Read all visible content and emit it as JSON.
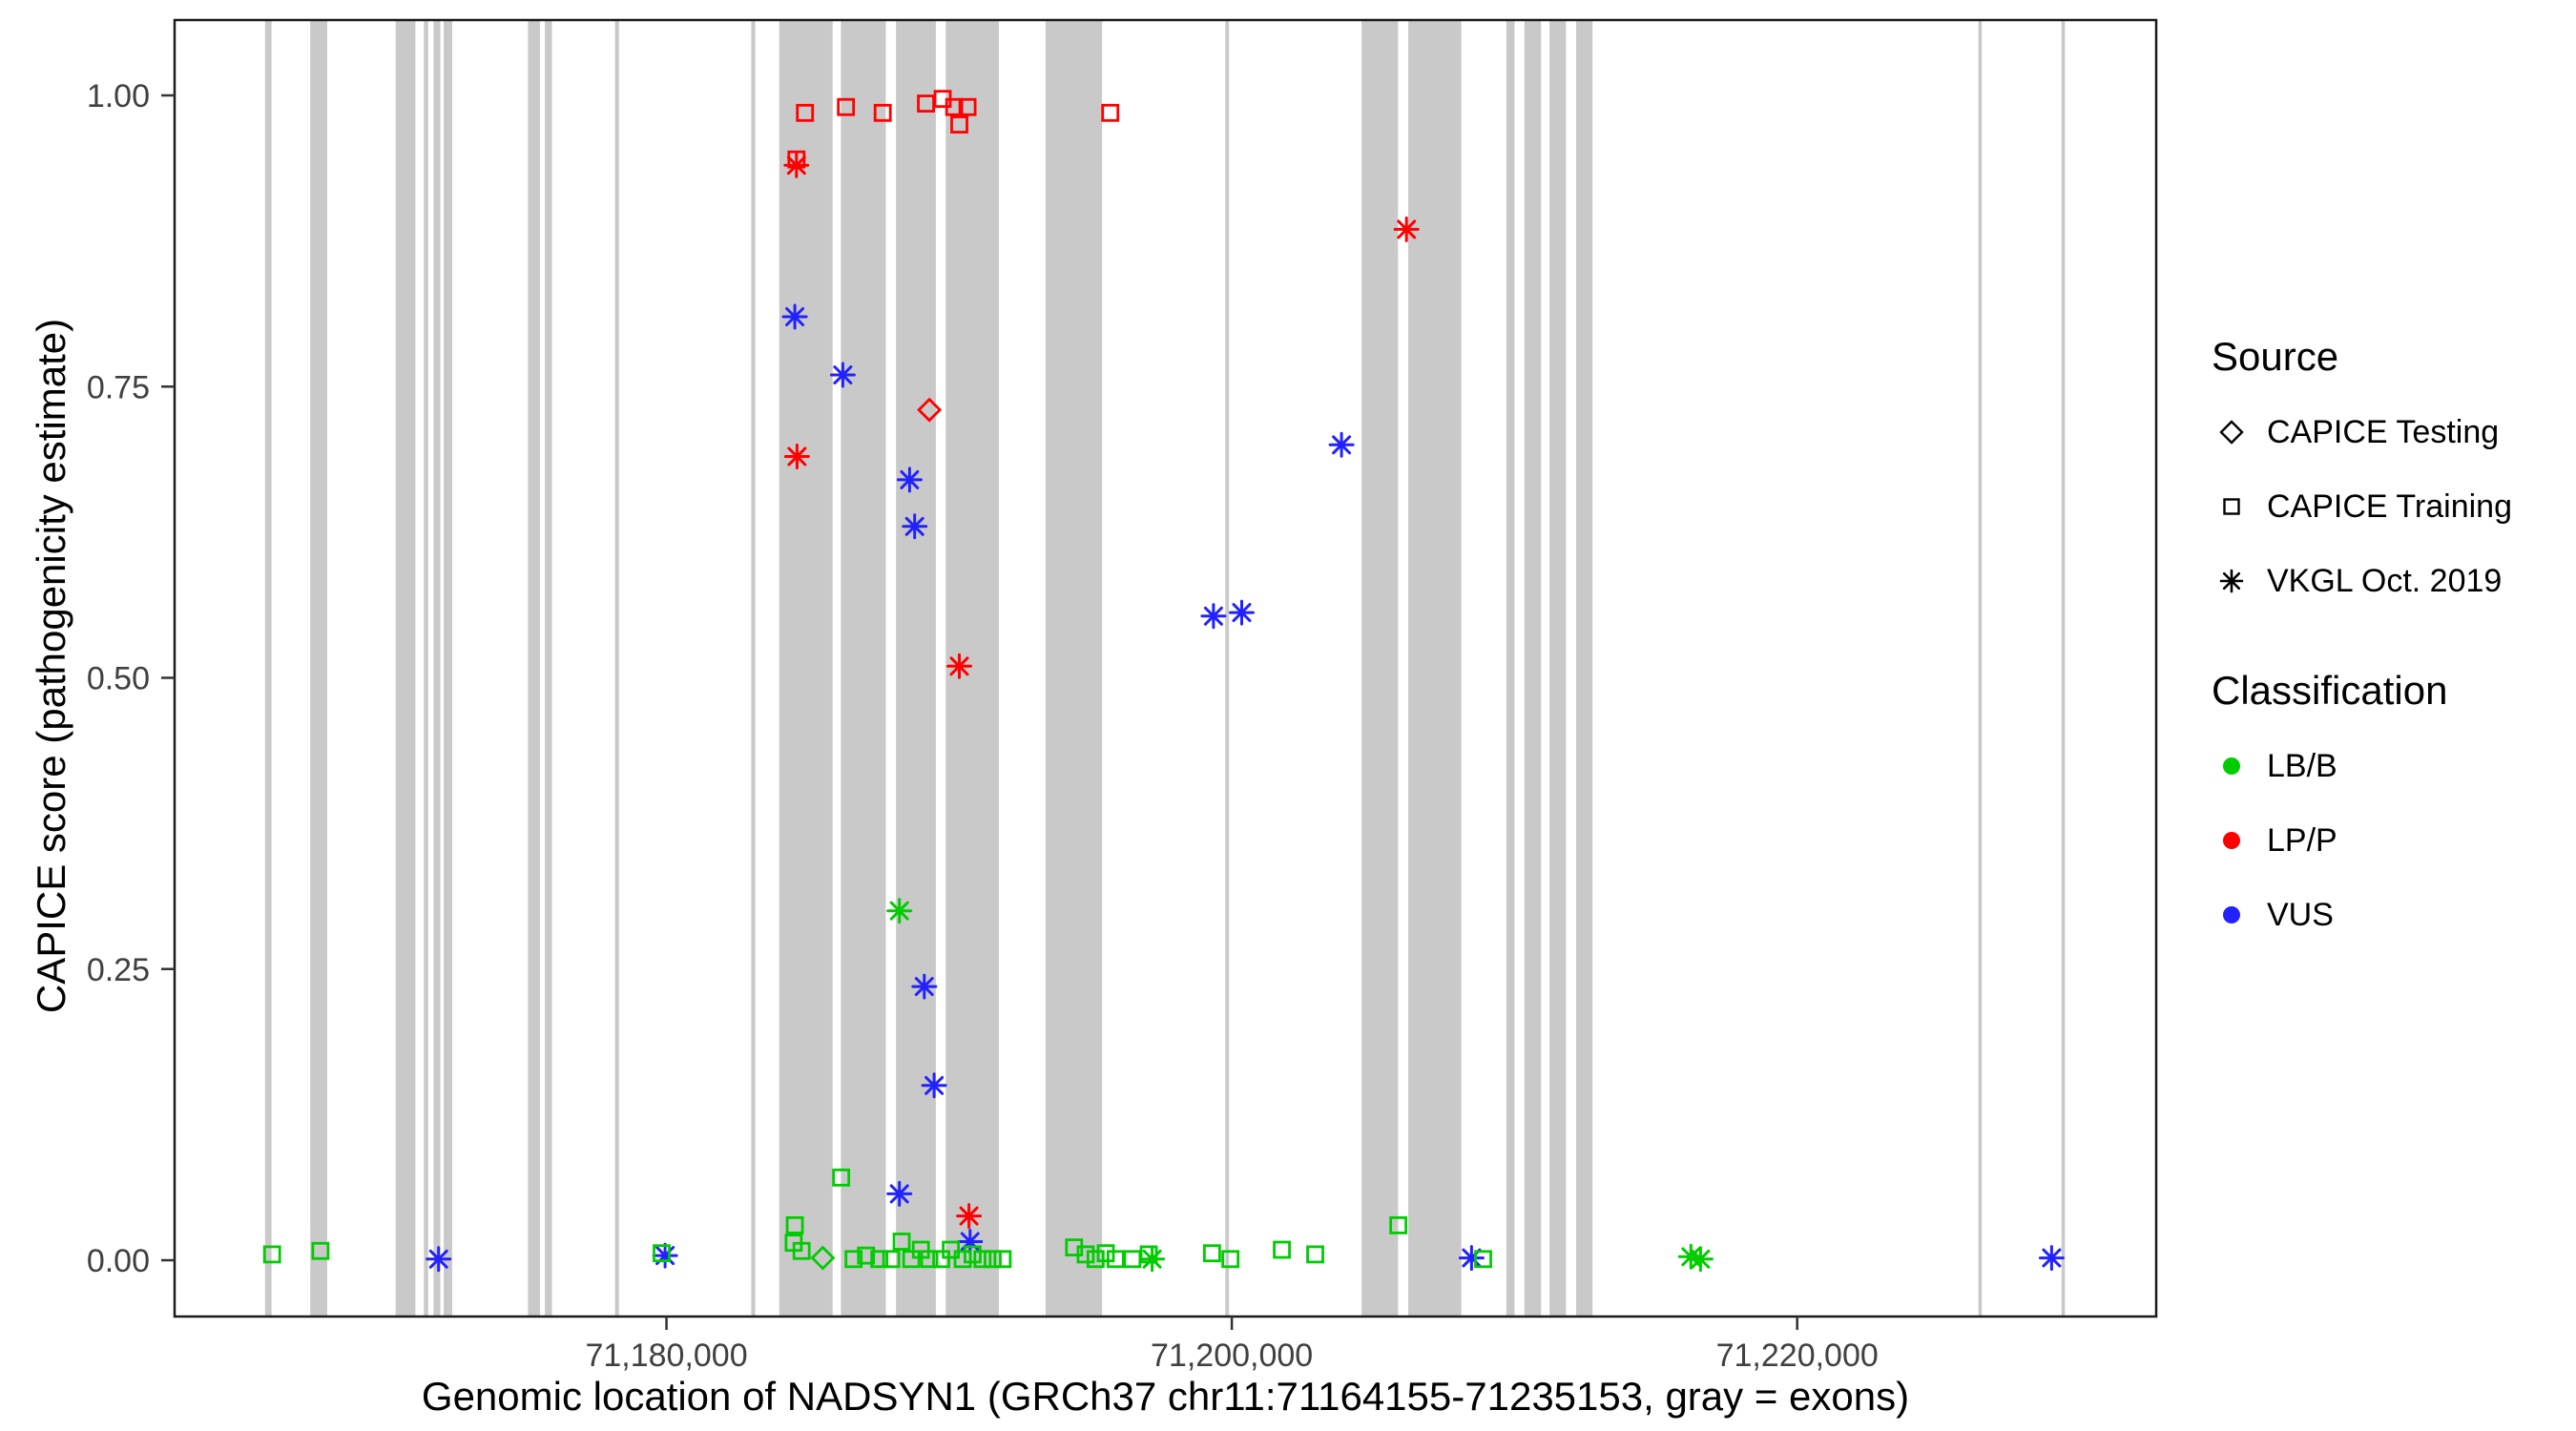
{
  "chart_data": {
    "type": "scatter",
    "title": "",
    "xlabel": "Genomic location of NADSYN1 (GRCh37 chr11:71164155-71235153, gray = exons)",
    "ylabel": "CAPICE score (pathogenicity estimate)",
    "xlim": [
      71162600,
      71232700
    ],
    "ylim": [
      0,
      1
    ],
    "x_ticks": [
      {
        "value": 71180000,
        "label": "71,180,000"
      },
      {
        "value": 71200000,
        "label": "71,200,000"
      },
      {
        "value": 71220000,
        "label": "71,220,000"
      }
    ],
    "y_ticks": [
      {
        "value": 0.0,
        "label": "0.00"
      },
      {
        "value": 0.25,
        "label": "0.25"
      },
      {
        "value": 0.5,
        "label": "0.50"
      },
      {
        "value": 0.75,
        "label": "0.75"
      },
      {
        "value": 1.0,
        "label": "1.00"
      }
    ],
    "exon_color": "#C9C9C9",
    "colors": {
      "LBB": "#00CC00",
      "LPP": "#FF0000",
      "VUS": "#2222FF"
    },
    "exons": [
      {
        "start": 71165800,
        "end": 71166030
      },
      {
        "start": 71167400,
        "end": 71168000
      },
      {
        "start": 71170420,
        "end": 71171120
      },
      {
        "start": 71171420,
        "end": 71171570
      },
      {
        "start": 71171760,
        "end": 71172000
      },
      {
        "start": 71172120,
        "end": 71172420
      },
      {
        "start": 71175100,
        "end": 71175530
      },
      {
        "start": 71175700,
        "end": 71175950
      },
      {
        "start": 71178180,
        "end": 71178320
      },
      {
        "start": 71183000,
        "end": 71183140
      },
      {
        "start": 71183990,
        "end": 71185880
      },
      {
        "start": 71186170,
        "end": 71187760
      },
      {
        "start": 71188120,
        "end": 71189530
      },
      {
        "start": 71189880,
        "end": 71191760
      },
      {
        "start": 71193410,
        "end": 71195410
      },
      {
        "start": 71199770,
        "end": 71199900
      },
      {
        "start": 71204590,
        "end": 71205880
      },
      {
        "start": 71206240,
        "end": 71208120
      },
      {
        "start": 71209710,
        "end": 71210000
      },
      {
        "start": 71210350,
        "end": 71210940
      },
      {
        "start": 71211240,
        "end": 71211820
      },
      {
        "start": 71212180,
        "end": 71212760
      },
      {
        "start": 71226410,
        "end": 71226530
      },
      {
        "start": 71229350,
        "end": 71229470
      }
    ],
    "points": [
      {
        "x": 71184600,
        "score": 0.945,
        "source": "training",
        "cls": "LPP"
      },
      {
        "x": 71184900,
        "score": 0.985,
        "source": "training",
        "cls": "LPP"
      },
      {
        "x": 71186350,
        "score": 0.99,
        "source": "training",
        "cls": "LPP"
      },
      {
        "x": 71187650,
        "score": 0.985,
        "source": "training",
        "cls": "LPP"
      },
      {
        "x": 71189180,
        "score": 0.993,
        "source": "training",
        "cls": "LPP"
      },
      {
        "x": 71189770,
        "score": 0.997,
        "source": "training",
        "cls": "LPP"
      },
      {
        "x": 71190180,
        "score": 0.99,
        "source": "training",
        "cls": "LPP"
      },
      {
        "x": 71190360,
        "score": 0.975,
        "source": "training",
        "cls": "LPP"
      },
      {
        "x": 71190650,
        "score": 0.99,
        "source": "training",
        "cls": "LPP"
      },
      {
        "x": 71195700,
        "score": 0.985,
        "source": "training",
        "cls": "LPP"
      },
      {
        "x": 71189300,
        "score": 0.73,
        "source": "testing",
        "cls": "LPP"
      },
      {
        "x": 71185530,
        "score": 0.002,
        "source": "testing",
        "cls": "LBB"
      },
      {
        "x": 71184600,
        "score": 0.94,
        "source": "vkgl",
        "cls": "LPP"
      },
      {
        "x": 71184620,
        "score": 0.69,
        "source": "vkgl",
        "cls": "LPP"
      },
      {
        "x": 71190360,
        "score": 0.51,
        "source": "vkgl",
        "cls": "LPP"
      },
      {
        "x": 71206180,
        "score": 0.885,
        "source": "vkgl",
        "cls": "LPP"
      },
      {
        "x": 71190700,
        "score": 0.038,
        "source": "vkgl",
        "cls": "LPP"
      },
      {
        "x": 71184540,
        "score": 0.81,
        "source": "vkgl",
        "cls": "VUS"
      },
      {
        "x": 71186240,
        "score": 0.76,
        "source": "vkgl",
        "cls": "VUS"
      },
      {
        "x": 71188600,
        "score": 0.67,
        "source": "vkgl",
        "cls": "VUS"
      },
      {
        "x": 71188780,
        "score": 0.63,
        "source": "vkgl",
        "cls": "VUS"
      },
      {
        "x": 71203880,
        "score": 0.7,
        "source": "vkgl",
        "cls": "VUS"
      },
      {
        "x": 71199350,
        "score": 0.553,
        "source": "vkgl",
        "cls": "VUS"
      },
      {
        "x": 71200350,
        "score": 0.556,
        "source": "vkgl",
        "cls": "VUS"
      },
      {
        "x": 71189120,
        "score": 0.235,
        "source": "vkgl",
        "cls": "VUS"
      },
      {
        "x": 71189470,
        "score": 0.15,
        "source": "vkgl",
        "cls": "VUS"
      },
      {
        "x": 71188240,
        "score": 0.057,
        "source": "vkgl",
        "cls": "VUS"
      },
      {
        "x": 71190740,
        "score": 0.016,
        "source": "vkgl",
        "cls": "VUS"
      },
      {
        "x": 71171940,
        "score": 0.001,
        "source": "vkgl",
        "cls": "VUS"
      },
      {
        "x": 71179950,
        "score": 0.004,
        "source": "vkgl",
        "cls": "VUS"
      },
      {
        "x": 71208480,
        "score": 0.002,
        "source": "vkgl",
        "cls": "VUS"
      },
      {
        "x": 71229000,
        "score": 0.002,
        "source": "vkgl",
        "cls": "VUS"
      },
      {
        "x": 71188240,
        "score": 0.3,
        "source": "vkgl",
        "cls": "LBB"
      },
      {
        "x": 71197180,
        "score": 0.001,
        "source": "vkgl",
        "cls": "LBB"
      },
      {
        "x": 71216240,
        "score": 0.003,
        "source": "vkgl",
        "cls": "LBB"
      },
      {
        "x": 71216580,
        "score": 0.001,
        "source": "vkgl",
        "cls": "LBB"
      },
      {
        "x": 71166050,
        "score": 0.005,
        "source": "training",
        "cls": "LBB"
      },
      {
        "x": 71167760,
        "score": 0.008,
        "source": "training",
        "cls": "LBB"
      },
      {
        "x": 71179830,
        "score": 0.006,
        "source": "training",
        "cls": "LBB"
      },
      {
        "x": 71184500,
        "score": 0.015,
        "source": "training",
        "cls": "LBB"
      },
      {
        "x": 71184540,
        "score": 0.03,
        "source": "training",
        "cls": "LBB"
      },
      {
        "x": 71184780,
        "score": 0.008,
        "source": "training",
        "cls": "LBB"
      },
      {
        "x": 71186180,
        "score": 0.071,
        "source": "training",
        "cls": "LBB"
      },
      {
        "x": 71186620,
        "score": 0.001,
        "source": "training",
        "cls": "LBB"
      },
      {
        "x": 71187060,
        "score": 0.004,
        "source": "training",
        "cls": "LBB"
      },
      {
        "x": 71187530,
        "score": 0.001,
        "source": "training",
        "cls": "LBB"
      },
      {
        "x": 71187950,
        "score": 0.001,
        "source": "training",
        "cls": "LBB"
      },
      {
        "x": 71188320,
        "score": 0.016,
        "source": "training",
        "cls": "LBB"
      },
      {
        "x": 71188660,
        "score": 0.001,
        "source": "training",
        "cls": "LBB"
      },
      {
        "x": 71189000,
        "score": 0.009,
        "source": "training",
        "cls": "LBB"
      },
      {
        "x": 71189300,
        "score": 0.001,
        "source": "training",
        "cls": "LBB"
      },
      {
        "x": 71189720,
        "score": 0.001,
        "source": "training",
        "cls": "LBB"
      },
      {
        "x": 71190060,
        "score": 0.009,
        "source": "training",
        "cls": "LBB"
      },
      {
        "x": 71190480,
        "score": 0.001,
        "source": "training",
        "cls": "LBB"
      },
      {
        "x": 71190830,
        "score": 0.005,
        "source": "training",
        "cls": "LBB"
      },
      {
        "x": 71191180,
        "score": 0.001,
        "source": "training",
        "cls": "LBB"
      },
      {
        "x": 71191540,
        "score": 0.001,
        "source": "training",
        "cls": "LBB"
      },
      {
        "x": 71191890,
        "score": 0.001,
        "source": "training",
        "cls": "LBB"
      },
      {
        "x": 71194420,
        "score": 0.011,
        "source": "training",
        "cls": "LBB"
      },
      {
        "x": 71194830,
        "score": 0.005,
        "source": "training",
        "cls": "LBB"
      },
      {
        "x": 71195180,
        "score": 0.001,
        "source": "training",
        "cls": "LBB"
      },
      {
        "x": 71195540,
        "score": 0.006,
        "source": "training",
        "cls": "LBB"
      },
      {
        "x": 71195890,
        "score": 0.001,
        "source": "training",
        "cls": "LBB"
      },
      {
        "x": 71196480,
        "score": 0.001,
        "source": "training",
        "cls": "LBB"
      },
      {
        "x": 71197060,
        "score": 0.005,
        "source": "training",
        "cls": "LBB"
      },
      {
        "x": 71199300,
        "score": 0.006,
        "source": "training",
        "cls": "LBB"
      },
      {
        "x": 71199950,
        "score": 0.001,
        "source": "training",
        "cls": "LBB"
      },
      {
        "x": 71201770,
        "score": 0.009,
        "source": "training",
        "cls": "LBB"
      },
      {
        "x": 71202950,
        "score": 0.005,
        "source": "training",
        "cls": "LBB"
      },
      {
        "x": 71205890,
        "score": 0.03,
        "source": "training",
        "cls": "LBB"
      },
      {
        "x": 71208890,
        "score": 0.001,
        "source": "training",
        "cls": "LBB"
      }
    ]
  },
  "legend": {
    "source": {
      "title": "Source",
      "items": [
        {
          "label": "CAPICE Testing",
          "symbol": "diamond"
        },
        {
          "label": "CAPICE Training",
          "symbol": "square"
        },
        {
          "label": "VKGL Oct. 2019",
          "symbol": "asterisk"
        }
      ]
    },
    "classification": {
      "title": "Classification",
      "items": [
        {
          "label": "LB/B",
          "cls": "LBB"
        },
        {
          "label": "LP/P",
          "cls": "LPP"
        },
        {
          "label": "VUS",
          "cls": "VUS"
        }
      ]
    }
  }
}
